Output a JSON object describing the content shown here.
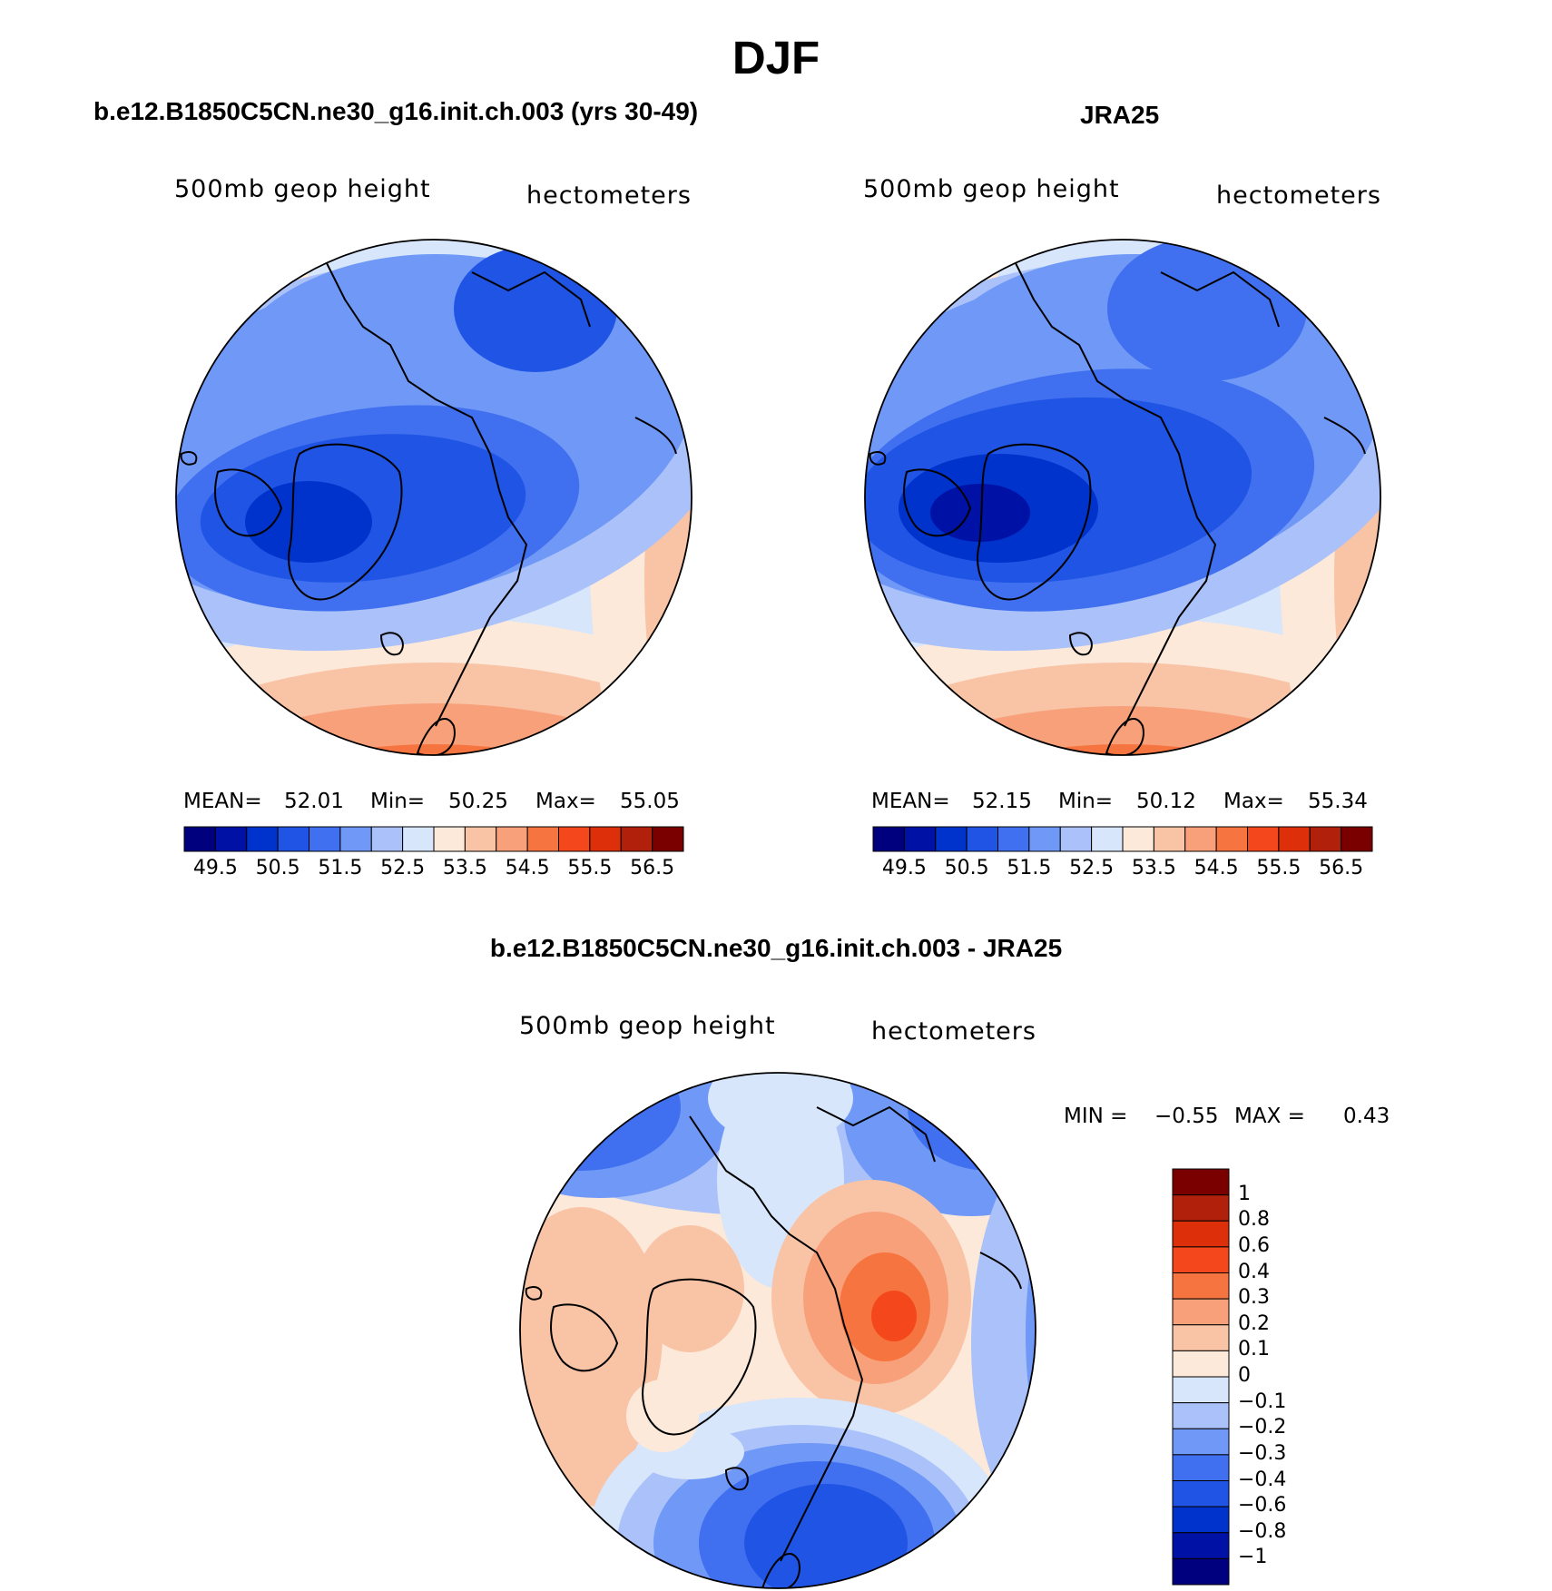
{
  "figure": {
    "title": "DJF"
  },
  "panels": [
    {
      "title": "b.e12.B1850C5CN.ne30_g16.init.ch.003 (yrs 30-49)",
      "variable": "500mb  geop  height",
      "units": "hectometers",
      "stats": {
        "mean_label": "MEAN=",
        "mean": "52.01",
        "min_label": "Min=",
        "min": "50.25",
        "max_label": "Max=",
        "max": "55.05"
      }
    },
    {
      "title": "JRA25",
      "variable": "500mb  geop  height",
      "units": "hectometers",
      "stats": {
        "mean_label": "MEAN=",
        "mean": "52.15",
        "min_label": "Min=",
        "min": "50.12",
        "max_label": "Max=",
        "max": "55.34"
      }
    },
    {
      "title": "b.e12.B1850C5CN.ne30_g16.init.ch.003 - JRA25",
      "variable": "500mb  geop  height",
      "units": "hectometers",
      "stats": {
        "min_label": "MIN =",
        "min": "−0.55",
        "max_label": "MAX =",
        "max": "0.43"
      }
    }
  ],
  "colorbars": {
    "absolute": {
      "colors": [
        "#00007f",
        "#0012a6",
        "#0033cc",
        "#1f54e5",
        "#4070ef",
        "#6f98f7",
        "#aac2f9",
        "#d7e6fb",
        "#fde9d9",
        "#f9c3a6",
        "#f8a07a",
        "#f6743f",
        "#f4481c",
        "#dc2f0a",
        "#b0200a",
        "#7a0000"
      ],
      "tick_labels": [
        "49.5",
        "50.5",
        "51.5",
        "52.5",
        "53.5",
        "54.5",
        "55.5",
        "56.5"
      ]
    },
    "difference": {
      "colors": [
        "#7a0000",
        "#b0200a",
        "#dc2f0a",
        "#f4481c",
        "#f6743f",
        "#f8a07a",
        "#f9c3a6",
        "#fde9d9",
        "#d7e6fb",
        "#aac2f9",
        "#6f98f7",
        "#4070ef",
        "#1f54e5",
        "#0033cc",
        "#0012a6",
        "#00007f"
      ],
      "tick_labels": [
        "1",
        "0.8",
        "0.6",
        "0.4",
        "0.3",
        "0.2",
        "0.1",
        "0",
        "−0.1",
        "−0.2",
        "−0.3",
        "−0.4",
        "−0.6",
        "−0.8",
        "−1"
      ]
    }
  },
  "map": {
    "projection": "north polar stereographic",
    "field": "500mb geopotential height",
    "season": "DJF",
    "coastlines": true
  }
}
